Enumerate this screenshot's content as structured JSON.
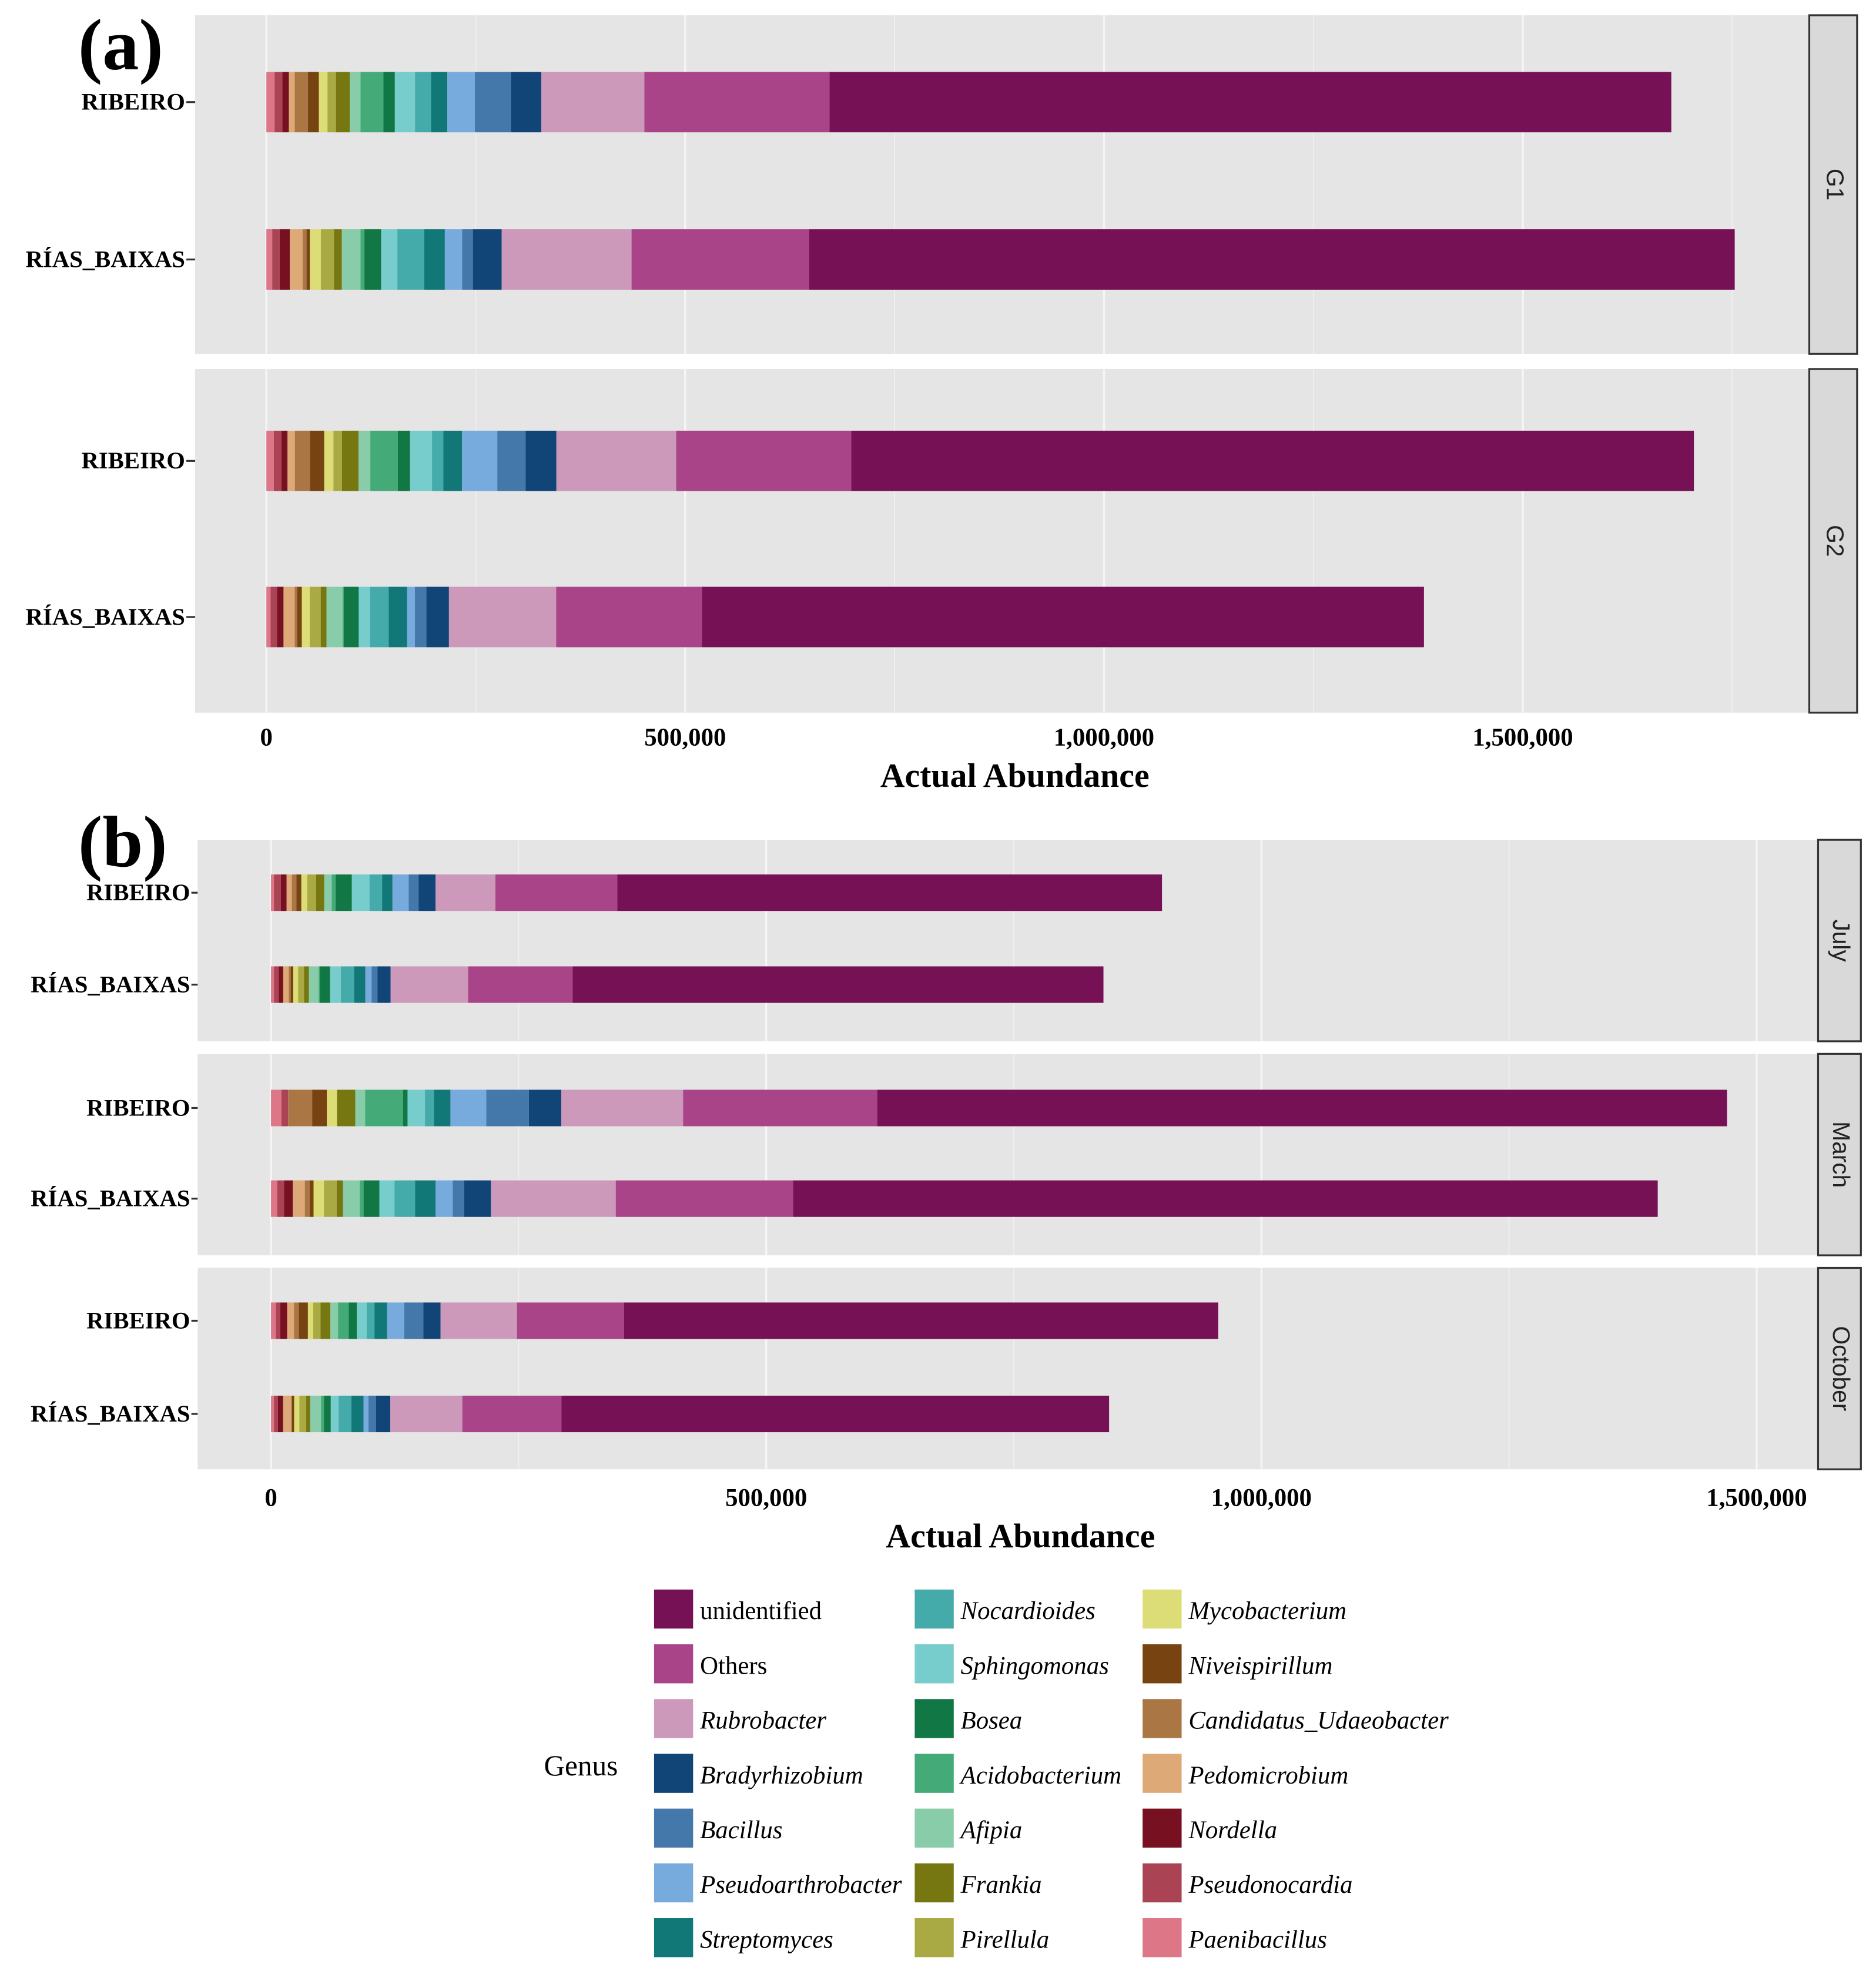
{
  "legend": {
    "title": "Genus",
    "genera": [
      {
        "name": "unidentified",
        "color": "#771155",
        "italic": false
      },
      {
        "name": "Others",
        "color": "#aa4488",
        "italic": false
      },
      {
        "name": "Rubrobacter",
        "color": "#cc99bb",
        "italic": true
      },
      {
        "name": "Bradyrhizobium",
        "color": "#114477",
        "italic": true
      },
      {
        "name": "Bacillus",
        "color": "#4477aa",
        "italic": true
      },
      {
        "name": "Pseudoarthrobacter",
        "color": "#77aadd",
        "italic": true
      },
      {
        "name": "Streptomyces",
        "color": "#117777",
        "italic": true
      },
      {
        "name": "Nocardioides",
        "color": "#44aaaa",
        "italic": true
      },
      {
        "name": "Sphingomonas",
        "color": "#77cccc",
        "italic": true
      },
      {
        "name": "Bosea",
        "color": "#117744",
        "italic": true
      },
      {
        "name": "Acidobacterium",
        "color": "#44aa77",
        "italic": true
      },
      {
        "name": "Afipia",
        "color": "#88ccaa",
        "italic": true
      },
      {
        "name": "Frankia",
        "color": "#777711",
        "italic": true
      },
      {
        "name": "Pirellula",
        "color": "#aaaa44",
        "italic": true
      },
      {
        "name": "Mycobacterium",
        "color": "#dddd77",
        "italic": true
      },
      {
        "name": "Niveispirillum",
        "color": "#774411",
        "italic": true
      },
      {
        "name": "Candidatus_Udaeobacter",
        "color": "#aa7744",
        "italic": true
      },
      {
        "name": "Pedomicrobium",
        "color": "#ddaa77",
        "italic": true
      },
      {
        "name": "Nordella",
        "color": "#771122",
        "italic": true
      },
      {
        "name": "Pseudonocardia",
        "color": "#aa4455",
        "italic": true
      },
      {
        "name": "Paenibacillus",
        "color": "#dd7788",
        "italic": true
      }
    ]
  },
  "chart_data": [
    {
      "panel_tag": "(a)",
      "type": "bar",
      "orientation": "horizontal",
      "stacked": true,
      "stack_order": "Paenibacillus first (left) to unidentified last (right); reverse of legend order",
      "xlabel": "Actual Abundance",
      "ylabel": "",
      "xlim": [
        -85000,
        1842000
      ],
      "xticks": [
        0,
        500000,
        1000000,
        1500000
      ],
      "xtick_labels": [
        "0",
        "500,000",
        "1,000,000",
        "1,500,000"
      ],
      "grid": true,
      "legend_position": "bottom",
      "facets": [
        {
          "label": "G1",
          "rows": [
            {
              "label": "RIBEIRO",
              "values": [
                9800,
                9400,
                7700,
                7000,
                15700,
                13100,
                10300,
                10100,
                16400,
                12900,
                27400,
                13600,
                24100,
                19200,
                19400,
                32800,
                43100,
                36300,
                123000,
                221000,
                1005000
              ]
            },
            {
              "label": "RÍAS_BAIXAS",
              "values": [
                7000,
                8900,
                12200,
                15200,
                4700,
                4000,
                13100,
                15700,
                9400,
                22200,
                4700,
                19900,
                19400,
                32100,
                24600,
                20600,
                12900,
                34400,
                155000,
                212000,
                1105000
              ]
            }
          ]
        },
        {
          "label": "G2",
          "rows": [
            {
              "label": "RIBEIRO",
              "values": [
                8900,
                9100,
                7300,
                8700,
                18000,
                17100,
                11000,
                10100,
                19900,
                14000,
                32800,
                14700,
                26200,
                13600,
                22200,
                42100,
                33900,
                36700,
                143000,
                209000,
                1006000
              ]
            },
            {
              "label": "RÍAS_BAIXAS",
              "values": [
                5100,
                7700,
                7700,
                13300,
                3000,
                5600,
                9400,
                13100,
                7000,
                19200,
                1200,
                18000,
                13600,
                22200,
                21800,
                9400,
                13800,
                26900,
                128000,
                174000,
                862000
              ]
            }
          ]
        }
      ]
    },
    {
      "panel_tag": "(b)",
      "type": "bar",
      "orientation": "horizontal",
      "stacked": true,
      "stack_order": "Paenibacillus first (left) to unidentified last (right); reverse of legend order",
      "xlabel": "Actual Abundance",
      "ylabel": "",
      "xlim": [
        -74000,
        1562000
      ],
      "xticks": [
        0,
        500000,
        1000000,
        1500000
      ],
      "xtick_labels": [
        "0",
        "500,000",
        "1,000,000",
        "1,500,000"
      ],
      "grid": true,
      "legend_position": "bottom",
      "facets": [
        {
          "label": "July",
          "rows": [
            {
              "label": "RIBEIRO",
              "values": [
                3000,
                6900,
                5900,
                5300,
                4600,
                5000,
                5900,
                8900,
                8300,
                7500,
                4000,
                16400,
                17800,
                12700,
                10500,
                16400,
                9900,
                17200,
                60400,
                123000,
                550000
              ]
            },
            {
              "label": "RÍAS_BAIXAS",
              "values": [
                3000,
                5000,
                4400,
                5500,
                2000,
                2600,
                5000,
                5900,
                5000,
                9900,
                1000,
                10300,
                10900,
                13500,
                11300,
                6300,
                5900,
                13300,
                78200,
                105500,
                536000
              ]
            }
          ]
        },
        {
          "label": "March",
          "rows": [
            {
              "label": "RIBEIRO",
              "values": [
                10500,
                6700,
                400,
                600,
                23400,
                14900,
                9900,
                600,
                18200,
                9900,
                38200,
                4600,
                17600,
                9100,
                16600,
                36200,
                43000,
                32700,
                123000,
                196000,
                858000
              ]
            },
            {
              "label": "RÍAS_BAIXAS",
              "values": [
                6300,
                6900,
                8900,
                12100,
                4800,
                4000,
                10500,
                12900,
                6300,
                17000,
                3800,
                16000,
                15200,
                20800,
                20800,
                17200,
                11500,
                27100,
                126000,
                179000,
                873000
              ]
            }
          ]
        },
        {
          "label": "October",
          "rows": [
            {
              "label": "RIBEIRO",
              "values": [
                5000,
                4400,
                6900,
                6900,
                5000,
                9100,
                5300,
                7500,
                9900,
                7700,
                10900,
                8100,
                9900,
                7900,
                12700,
                17400,
                19200,
                17400,
                77200,
                108000,
                600000
              ]
            },
            {
              "label": "RÍAS_BAIXAS",
              "values": [
                3000,
                4000,
                5300,
                8100,
                800,
                2200,
                5300,
                6900,
                4000,
                10900,
                3000,
                6900,
                7900,
                12900,
                12300,
                5000,
                7500,
                14500,
                72700,
                100000,
                553000
              ]
            }
          ]
        }
      ]
    }
  ]
}
